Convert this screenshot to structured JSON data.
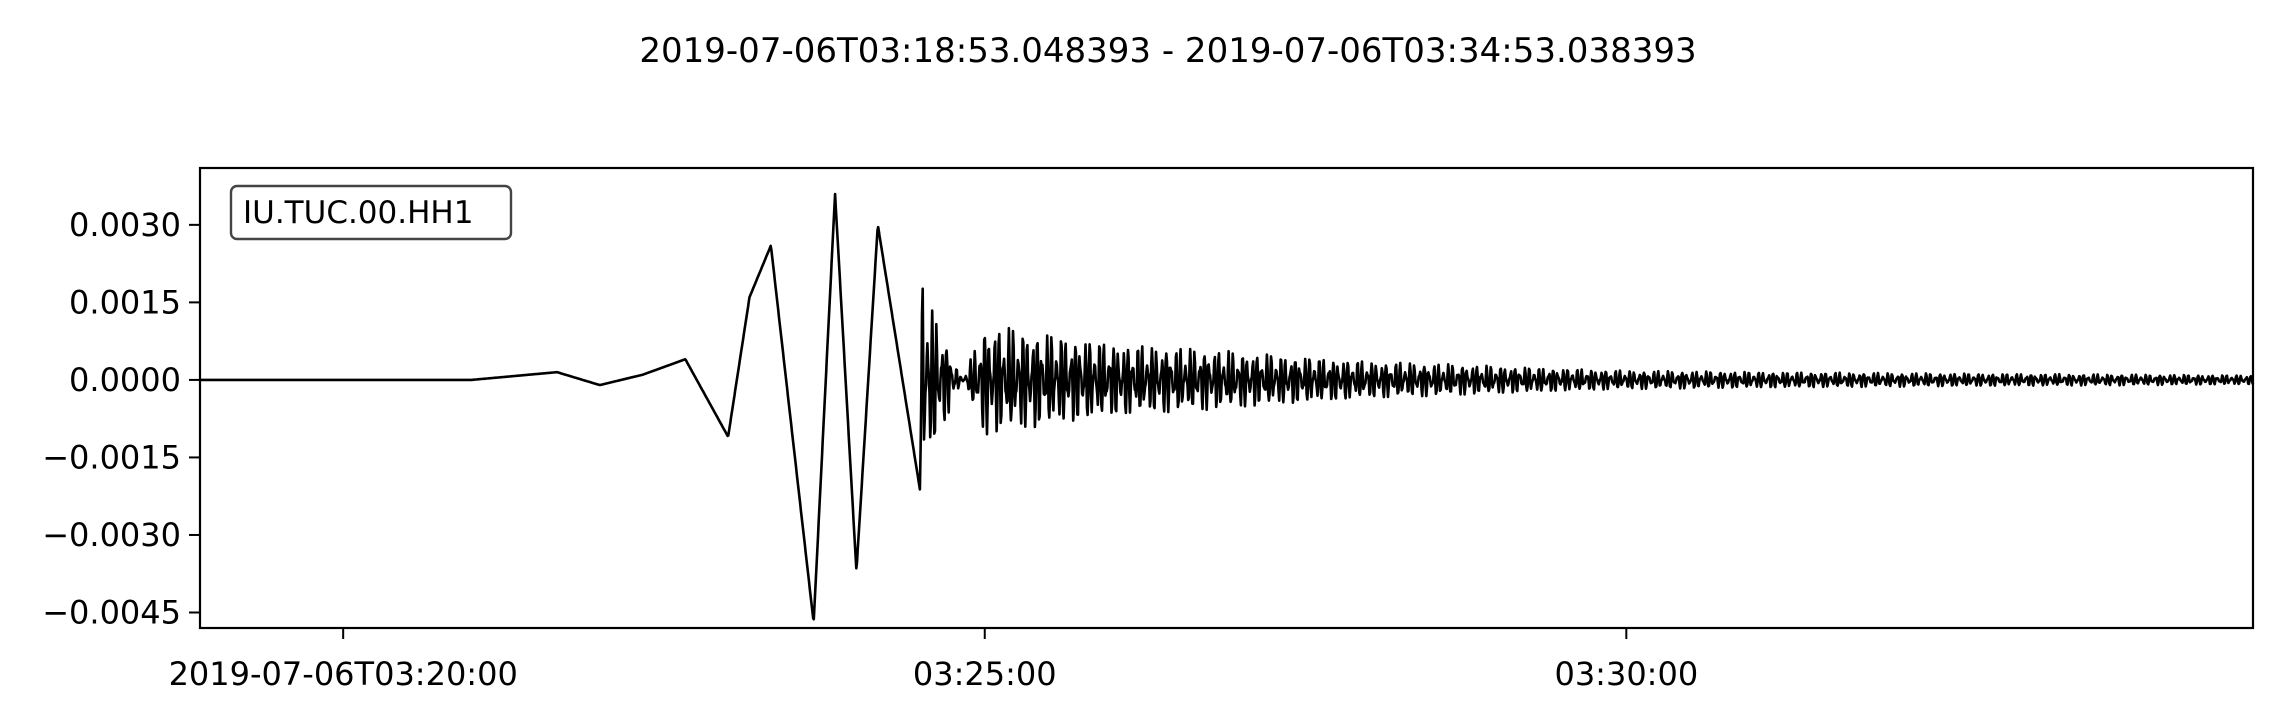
{
  "chart_data": {
    "type": "line",
    "title": "2019-07-06T03:18:53.048393  -  2019-07-06T03:34:53.038393",
    "trace_label": "IU.TUC.00.HH1",
    "x_range": [
      "2019-07-06T03:18:53.048393",
      "2019-07-06T03:34:53.038393"
    ],
    "ylim": [
      -0.0048,
      0.0041
    ],
    "y_ticks": [
      0.003,
      0.0015,
      0.0,
      -0.0015,
      -0.003,
      -0.0045
    ],
    "y_tick_labels": [
      "0.0030",
      "0.0015",
      "0.0000",
      "−0.0015",
      "−0.0030",
      "−0.0045"
    ],
    "x_ticks": [
      "2019-07-06T03:20:00",
      "2019-07-06T03:25:00",
      "2019-07-06T03:30:00"
    ],
    "x_tick_labels": [
      "2019-07-06T03:20:00",
      "03:25:00",
      "03:30:00"
    ],
    "grid": false,
    "series": [
      {
        "color": "#000000",
        "x": [
          "2019-07-06T03:18:53",
          "2019-07-06T03:20:00",
          "2019-07-06T03:21:00",
          "2019-07-06T03:21:40",
          "2019-07-06T03:22:00",
          "2019-07-06T03:22:20",
          "2019-07-06T03:22:40",
          "2019-07-06T03:23:00",
          "2019-07-06T03:23:10",
          "2019-07-06T03:23:20",
          "2019-07-06T03:23:40",
          "2019-07-06T03:23:50",
          "2019-07-06T03:24:00",
          "2019-07-06T03:24:10",
          "2019-07-06T03:24:30",
          "2019-07-06T03:25:00",
          "2019-07-06T03:26:00",
          "2019-07-06T03:28:00",
          "2019-07-06T03:30:00",
          "2019-07-06T03:32:00",
          "2019-07-06T03:34:53"
        ],
        "y": [
          0.0,
          0.0,
          0.0,
          0.00015,
          -0.0001,
          0.0001,
          0.0004,
          -0.0011,
          0.0016,
          0.0026,
          -0.0047,
          0.0036,
          -0.0037,
          0.003,
          -0.0022,
          0.0012,
          0.0008,
          0.0004,
          0.0002,
          0.00015,
          0.0001
        ]
      }
    ]
  }
}
